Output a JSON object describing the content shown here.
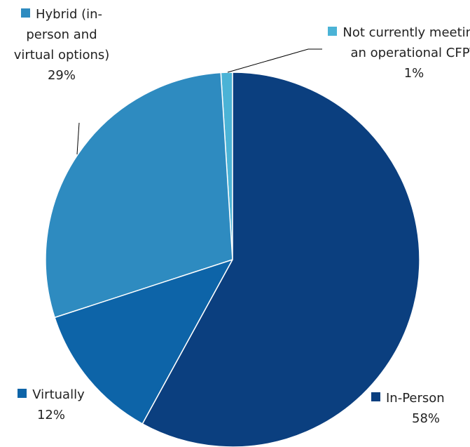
{
  "chart_data": {
    "type": "pie",
    "categories": [
      "In-Person",
      "Virtually",
      "Hybrid (in-person and virtual options)",
      "Not currently meeting as an operational CFPT"
    ],
    "values": [
      58,
      12,
      29,
      1
    ],
    "value_labels": [
      "58%",
      "12%",
      "29%",
      "1%"
    ],
    "colors": [
      "#0b3f7f",
      "#0d64a8",
      "#2e8bc0",
      "#4bb3d6"
    ]
  }
}
